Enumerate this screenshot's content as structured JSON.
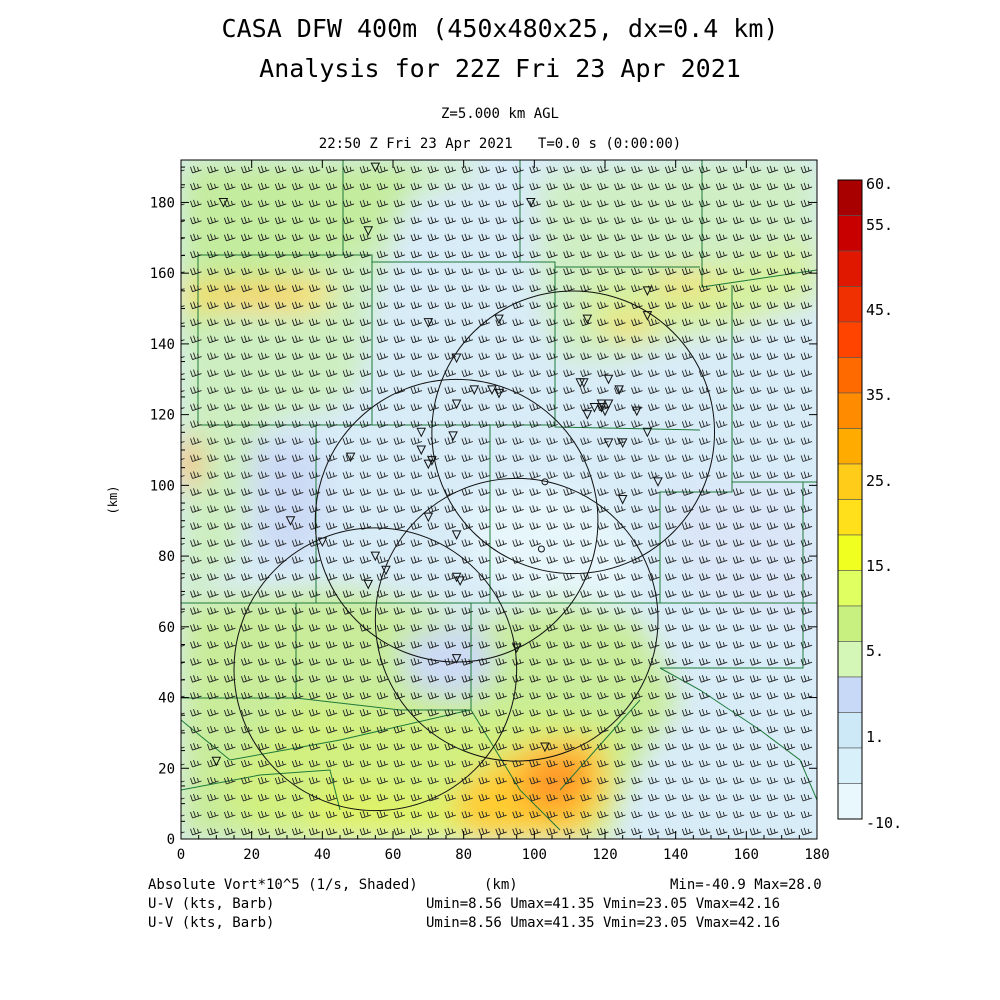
{
  "titles": {
    "line1": "CASA DFW 400m (450x480x25, dx=0.4 km)",
    "line2": "Analysis for 22Z Fri 23 Apr 2021",
    "level": "Z=5.000 km AGL",
    "time": "22:50 Z Fri 23 Apr 2021   T=0.0 s (0:00:00)"
  },
  "axes": {
    "x_label": "(km)",
    "y_label": "(km)",
    "x_range": [
      0,
      180
    ],
    "y_range": [
      0,
      192
    ],
    "x_ticks": [
      "0",
      "20",
      "40",
      "60",
      "80",
      "100",
      "120",
      "140",
      "160",
      "180"
    ],
    "y_ticks": [
      "0",
      "20",
      "40",
      "60",
      "80",
      "100",
      "120",
      "140",
      "160",
      "180"
    ]
  },
  "colorbar": {
    "labels": [
      "60.",
      "55.",
      "45.",
      "35.",
      "25.",
      "15.",
      "5.",
      "1.",
      "-10."
    ],
    "colors": [
      "#a80000",
      "#c80000",
      "#e01800",
      "#f03000",
      "#ff4400",
      "#ff6a00",
      "#ff8c00",
      "#ffab00",
      "#ffcc1a",
      "#ffe01a",
      "#f0ff20",
      "#e0ff60",
      "#c8f080",
      "#d4f7b8",
      "#c8d8f7",
      "#cde9f7",
      "#d8f0fa",
      "#e8f8fc"
    ]
  },
  "footer": {
    "field": "Absolute Vort*10^5 (1/s, Shaded)",
    "xunit": "(km)",
    "minmax": "Min=-40.9 Max=28.0",
    "barb1_name": "U-V (kts, Barb)",
    "barb1_stats": "Umin=8.56 Umax=41.35 Vmin=23.05 Vmax=42.16",
    "barb2_name": "U-V (kts, Barb)",
    "barb2_stats": "Umin=8.56 Umax=41.35 Vmin=23.05 Vmax=42.16"
  },
  "map_data": {
    "radar_rings": [
      {
        "cx": 111,
        "cy": 115,
        "r": 40
      },
      {
        "cx": 78,
        "cy": 90,
        "r": 40
      },
      {
        "cx": 95,
        "cy": 62,
        "r": 40
      },
      {
        "cx": 55,
        "cy": 48,
        "r": 40
      }
    ],
    "radar_sites": [
      [
        103,
        101
      ],
      [
        102,
        82
      ]
    ],
    "hail_markers": [
      [
        55,
        190
      ],
      [
        12,
        180
      ],
      [
        53,
        172
      ],
      [
        99,
        180
      ],
      [
        70,
        146
      ],
      [
        90,
        147
      ],
      [
        115,
        147
      ],
      [
        132,
        155
      ],
      [
        132,
        148
      ],
      [
        78,
        136
      ],
      [
        83,
        127
      ],
      [
        88,
        127
      ],
      [
        90,
        126
      ],
      [
        78,
        123
      ],
      [
        113,
        129
      ],
      [
        114,
        129
      ],
      [
        121,
        130
      ],
      [
        124,
        127
      ],
      [
        115,
        120
      ],
      [
        117,
        122
      ],
      [
        119,
        122
      ],
      [
        119,
        123
      ],
      [
        120,
        121
      ],
      [
        121,
        123
      ],
      [
        129,
        121
      ],
      [
        132,
        115
      ],
      [
        68,
        115
      ],
      [
        77,
        114
      ],
      [
        121,
        112
      ],
      [
        125,
        112
      ],
      [
        68,
        110
      ],
      [
        71,
        107
      ],
      [
        70,
        106
      ],
      [
        48,
        108
      ],
      [
        135,
        101
      ],
      [
        125,
        96
      ],
      [
        31,
        90
      ],
      [
        70,
        91
      ],
      [
        78,
        86
      ],
      [
        40,
        84
      ],
      [
        55,
        80
      ],
      [
        58,
        76
      ],
      [
        53,
        72
      ],
      [
        78,
        74
      ],
      [
        79,
        73
      ],
      [
        78,
        51
      ],
      [
        95,
        54
      ],
      [
        103,
        26
      ],
      [
        10,
        22
      ]
    ],
    "barb_spacing_km": 4.8
  }
}
